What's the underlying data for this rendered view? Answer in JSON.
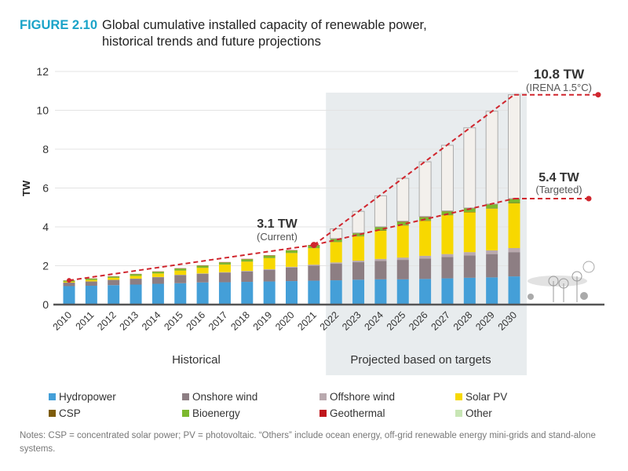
{
  "figure_label": "FIGURE 2.10",
  "title_line1": "Global cumulative installed capacity of renewable power,",
  "title_line2": "historical trends and future projections",
  "notes": "Notes: CSP = concentrated solar power; PV = photovoltaic. “Others” include ocean energy, off-grid renewable energy mini-grids and stand-alone systems.",
  "chart_data": {
    "type": "bar",
    "stacked": true,
    "ylabel": "TW",
    "ylim": [
      0,
      12
    ],
    "yticks": [
      "0",
      "2",
      "4",
      "6",
      "8",
      "10",
      "12"
    ],
    "grid": true,
    "legend_placement": "bottom",
    "categories": [
      "2010",
      "2011",
      "2012",
      "2013",
      "2014",
      "2015",
      "2016",
      "2017",
      "2018",
      "2019",
      "2020",
      "2021",
      "2022",
      "2023",
      "2024",
      "2025",
      "2026",
      "2027",
      "2028",
      "2029",
      "2030"
    ],
    "series": [
      {
        "name": "Hydropower",
        "color": "#449fd8",
        "values": [
          0.95,
          0.97,
          1.0,
          1.03,
          1.07,
          1.1,
          1.14,
          1.15,
          1.17,
          1.19,
          1.21,
          1.23,
          1.25,
          1.28,
          1.3,
          1.3,
          1.32,
          1.35,
          1.38,
          1.4,
          1.45
        ]
      },
      {
        "name": "Onshore wind",
        "color": "#8d7e83",
        "values": [
          0.18,
          0.22,
          0.27,
          0.3,
          0.34,
          0.42,
          0.45,
          0.5,
          0.54,
          0.6,
          0.7,
          0.77,
          0.85,
          0.9,
          0.95,
          1.0,
          1.05,
          1.1,
          1.15,
          1.2,
          1.25
        ]
      },
      {
        "name": "Offshore wind",
        "color": "#b9a9ae",
        "values": [
          0.003,
          0.004,
          0.005,
          0.007,
          0.01,
          0.012,
          0.014,
          0.019,
          0.023,
          0.028,
          0.034,
          0.055,
          0.07,
          0.08,
          0.1,
          0.12,
          0.14,
          0.15,
          0.17,
          0.19,
          0.21
        ]
      },
      {
        "name": "Solar PV",
        "color": "#f7d800",
        "values": [
          0.04,
          0.07,
          0.1,
          0.14,
          0.18,
          0.22,
          0.29,
          0.39,
          0.48,
          0.58,
          0.71,
          0.85,
          1.05,
          1.25,
          1.45,
          1.65,
          1.8,
          2.0,
          2.05,
          2.15,
          2.3
        ]
      },
      {
        "name": "CSP",
        "color": "#7d5c0a",
        "values": [
          0.001,
          0.002,
          0.003,
          0.003,
          0.004,
          0.005,
          0.005,
          0.005,
          0.006,
          0.006,
          0.006,
          0.006,
          0.01,
          0.01,
          0.02,
          0.02,
          0.02,
          0.02,
          0.02,
          0.02,
          0.02
        ]
      },
      {
        "name": "Bioenergy",
        "color": "#7cb82e",
        "values": [
          0.06,
          0.07,
          0.07,
          0.09,
          0.09,
          0.1,
          0.11,
          0.11,
          0.12,
          0.12,
          0.13,
          0.14,
          0.15,
          0.15,
          0.16,
          0.17,
          0.17,
          0.18,
          0.18,
          0.19,
          0.2
        ]
      },
      {
        "name": "Geothermal",
        "color": "#c0161c",
        "values": [
          0.01,
          0.01,
          0.011,
          0.011,
          0.012,
          0.013,
          0.013,
          0.014,
          0.014,
          0.014,
          0.014,
          0.015,
          0.016,
          0.017,
          0.02,
          0.03,
          0.03,
          0.02,
          0.02,
          0.02,
          0.02
        ]
      },
      {
        "name": "Other",
        "color": "#c8e6b5",
        "values": [
          0.001,
          0.001,
          0.001,
          0.001,
          0.001,
          0.001,
          0.001,
          0.001,
          0.001,
          0.001,
          0.001,
          0.001,
          0.002,
          0.002,
          0.003,
          0.003,
          0.003,
          0.003,
          0.004,
          0.004,
          0.005
        ]
      }
    ],
    "irena_1_5C_total": [
      null,
      null,
      null,
      null,
      null,
      null,
      null,
      null,
      null,
      null,
      null,
      null,
      3.9,
      4.8,
      5.6,
      6.5,
      7.35,
      8.2,
      9.1,
      9.95,
      10.8
    ],
    "irena_color": "#f3f0ec",
    "trend_color": "#d0262e",
    "annotations": {
      "current_value": "3.1 TW",
      "current_label": "(Current)",
      "irena_value": "10.8 TW",
      "irena_label": "(IRENA 1.5°C)",
      "targeted_value": "5.4 TW",
      "targeted_label": "(Targeted)"
    },
    "period_labels": {
      "historical": "Historical",
      "projected": "Projected based on targets"
    }
  }
}
